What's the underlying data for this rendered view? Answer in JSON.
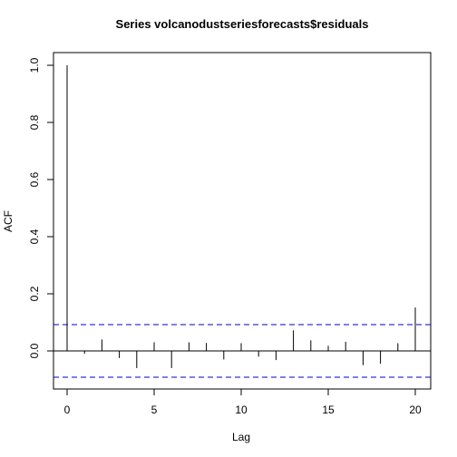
{
  "chart_data": {
    "type": "bar",
    "title": "Series  volcanodustseriesforecasts$residuals",
    "xlabel": "Lag",
    "ylabel": "ACF",
    "xlim": [
      0,
      20
    ],
    "ylim": [
      -0.13,
      1.0
    ],
    "x_ticks": [
      0,
      5,
      10,
      15,
      20
    ],
    "x_tick_labels": [
      "0",
      "5",
      "10",
      "15",
      "20"
    ],
    "y_ticks": [
      0.0,
      0.2,
      0.4,
      0.6,
      0.8,
      1.0
    ],
    "y_tick_labels": [
      "0.0",
      "0.2",
      "0.4",
      "0.6",
      "0.8",
      "1.0"
    ],
    "lags": [
      0,
      1,
      2,
      3,
      4,
      5,
      6,
      7,
      8,
      9,
      10,
      11,
      12,
      13,
      14,
      15,
      16,
      17,
      18,
      19,
      20
    ],
    "values": [
      1.0,
      -0.01,
      0.04,
      -0.025,
      -0.06,
      0.03,
      -0.06,
      0.03,
      0.028,
      -0.03,
      0.027,
      -0.02,
      -0.032,
      0.072,
      0.037,
      0.018,
      0.032,
      -0.05,
      -0.045,
      0.027,
      0.152
    ],
    "confidence_bounds": [
      0.092,
      -0.092
    ],
    "grid": false,
    "colors": {
      "bars": "#000000",
      "zero_line": "#000000",
      "ci_line": "#0000cc",
      "frame": "#000000"
    }
  }
}
